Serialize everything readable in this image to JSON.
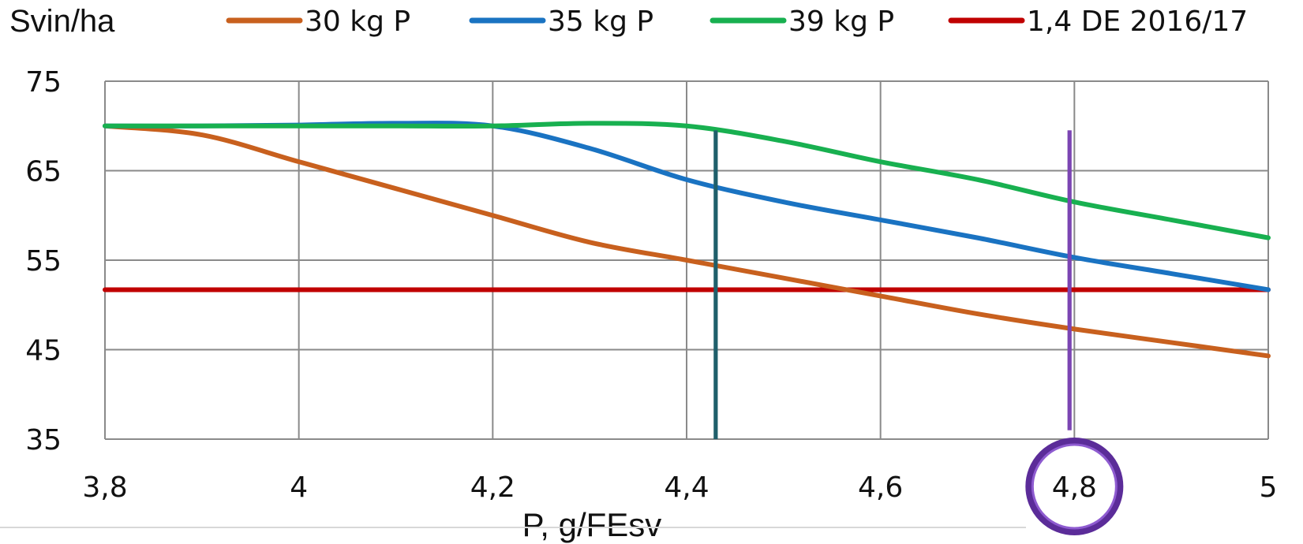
{
  "chart_data": {
    "type": "line",
    "title": "",
    "ylabel": "Svin/ha",
    "xlabel": "P, g/FEsv",
    "xlim": [
      3.8,
      5
    ],
    "ylim": [
      35,
      75
    ],
    "grid": true,
    "legend_position": "top",
    "x_ticks": [
      3.8,
      4,
      4.2,
      4.4,
      4.6,
      4.8,
      5
    ],
    "x_tick_labels": [
      "3,8",
      "4",
      "4,2",
      "4,4",
      "4,6",
      "4,8",
      "5"
    ],
    "y_ticks": [
      35,
      45,
      55,
      65,
      75
    ],
    "y_tick_labels": [
      "35",
      "45",
      "55",
      "65",
      "75"
    ],
    "x_gridlines": [
      3.8,
      4,
      4.2,
      4.4,
      4.6,
      4.8,
      5
    ],
    "series": [
      {
        "name": "30 kg P",
        "color": "#C8601E",
        "x": [
          3.8,
          3.9,
          4.0,
          4.1,
          4.2,
          4.3,
          4.4,
          4.5,
          4.6,
          4.7,
          4.8,
          4.9,
          5.0
        ],
        "y": [
          70.0,
          69.0,
          66.0,
          63.0,
          60.0,
          57.0,
          55.0,
          53.0,
          51.0,
          49.0,
          47.3,
          45.8,
          44.3
        ]
      },
      {
        "name": "35 kg P",
        "color": "#1A73C2",
        "x": [
          3.8,
          3.9,
          4.0,
          4.1,
          4.2,
          4.3,
          4.4,
          4.5,
          4.6,
          4.7,
          4.8,
          4.9,
          5.0
        ],
        "y": [
          70.0,
          70.0,
          70.1,
          70.3,
          70.0,
          67.5,
          64.0,
          61.5,
          59.5,
          57.5,
          55.3,
          53.5,
          51.7
        ]
      },
      {
        "name": "39 kg P",
        "color": "#18B050",
        "x": [
          3.8,
          3.9,
          4.0,
          4.1,
          4.2,
          4.3,
          4.4,
          4.5,
          4.6,
          4.7,
          4.8,
          4.9,
          5.0
        ],
        "y": [
          70.0,
          70.0,
          70.0,
          70.0,
          70.0,
          70.3,
          70.0,
          68.3,
          66.0,
          64.0,
          61.5,
          59.5,
          57.5
        ]
      },
      {
        "name": "1,4 DE 2016/17",
        "color": "#C00000",
        "x": [
          3.8,
          5.0
        ],
        "y": [
          51.7,
          51.7
        ]
      }
    ],
    "annotations": [
      {
        "kind": "vertical-line",
        "x": 4.43,
        "y_from": 35,
        "y_to": 69.5,
        "color": "#1F5F6B"
      },
      {
        "kind": "vertical-line",
        "x": 4.795,
        "y_from": 36,
        "y_to": 69.5,
        "color": "#7B45B3"
      },
      {
        "kind": "circle-highlight",
        "target": "4,8",
        "stroke": "#5B2C99",
        "fill_stroke": "#8E5BD0"
      }
    ]
  }
}
